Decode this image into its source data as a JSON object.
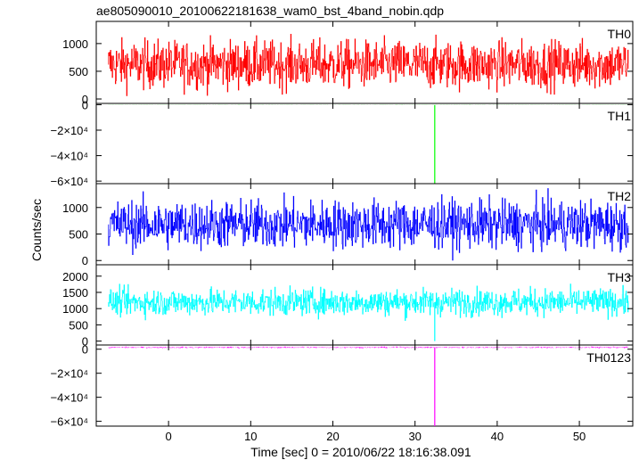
{
  "chart_data": [
    {
      "type": "line",
      "title": "ae805090010_20100622181638_wam0_bst_4band_nobin.qdp",
      "xlabel": "Time [sec] 0 = 2010/06/22 18:16:38.091",
      "ylabel": "Counts/sec",
      "xlim": [
        -8.8,
        56.5
      ],
      "xticks": [
        0,
        10,
        20,
        30,
        40,
        50
      ],
      "x_tick_labels": [
        "0",
        "10",
        "20",
        "30",
        "40",
        "50"
      ],
      "panels": [
        {
          "name": "TH0",
          "color": "#ff0000",
          "ylim": [
            -80,
            1400
          ],
          "yticks": [
            0,
            500,
            1000
          ],
          "y_tick_labels": [
            "0",
            "500",
            "1000"
          ],
          "baseline": 620,
          "spread": 310,
          "clip": [
            0,
            1400
          ],
          "spikes": []
        },
        {
          "name": "TH1",
          "color": "#00ff00",
          "ylim": [
            -62000,
            1000
          ],
          "yticks": [
            0,
            -20000,
            -40000,
            -60000
          ],
          "y_tick_labels": [
            "0",
            "−2×10⁴",
            "−4×10⁴",
            "−6×10⁴"
          ],
          "baseline": -300,
          "spread": 40,
          "clip": [
            -62000,
            1000
          ],
          "spikes": [
            {
              "x": 32.4,
              "y": -62000
            }
          ]
        },
        {
          "name": "TH2",
          "color": "#0000ff",
          "ylim": [
            -80,
            1450
          ],
          "yticks": [
            0,
            500,
            1000
          ],
          "y_tick_labels": [
            "0",
            "500",
            "1000"
          ],
          "baseline": 680,
          "spread": 330,
          "clip": [
            0,
            1450
          ],
          "spikes": []
        },
        {
          "name": "TH3",
          "color": "#00ffff",
          "ylim": [
            -120,
            2350
          ],
          "yticks": [
            0,
            500,
            1000,
            1500,
            2000
          ],
          "y_tick_labels": [
            "0",
            "500",
            "1000",
            "1500",
            "2000"
          ],
          "baseline": 1200,
          "spread": 300,
          "clip": [
            0,
            2350
          ],
          "spikes": [
            {
              "x": 32.4,
              "y": 0
            }
          ]
        },
        {
          "name": "TH0123",
          "color": "#ff00ff",
          "ylim": [
            -64000,
            3500
          ],
          "yticks": [
            0,
            -20000,
            -40000,
            -60000
          ],
          "y_tick_labels": [
            "0",
            "−2×10⁴",
            "−4×10⁴",
            "−6×10⁴"
          ],
          "baseline": 1500,
          "spread": 400,
          "clip": [
            -64000,
            3500
          ],
          "spikes": [
            {
              "x": 32.4,
              "y": -64000
            }
          ]
        }
      ]
    }
  ]
}
